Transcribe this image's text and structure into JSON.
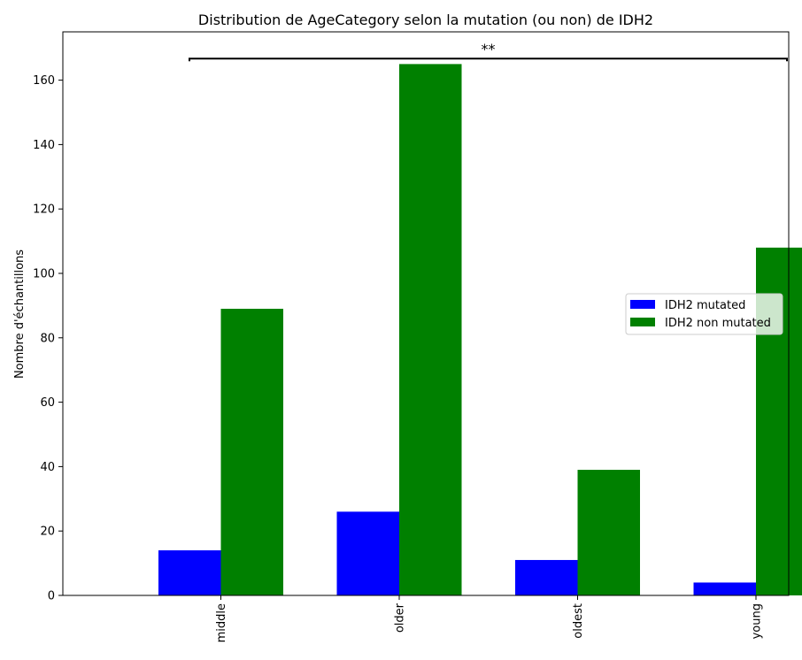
{
  "chart_data": {
    "type": "bar",
    "title": "Distribution de AgeCategory selon la mutation (ou non) de IDH2",
    "xlabel": "",
    "ylabel": "Nombre d'échantillons",
    "categories": [
      "middle",
      "older",
      "oldest",
      "young"
    ],
    "series": [
      {
        "name": "IDH2 mutated",
        "color": "#0000ff",
        "values": [
          14,
          26,
          11,
          4
        ]
      },
      {
        "name": "IDH2 non mutated",
        "color": "#008000",
        "values": [
          89,
          165,
          39,
          108
        ]
      }
    ],
    "ylim": [
      0,
      175
    ],
    "yticks": [
      0,
      20,
      40,
      60,
      80,
      100,
      120,
      140,
      160
    ],
    "grid": false,
    "legend_position": "center-right",
    "annotation": {
      "text": "**",
      "from_category": "middle",
      "to_category": "young",
      "y": 166.7
    }
  }
}
